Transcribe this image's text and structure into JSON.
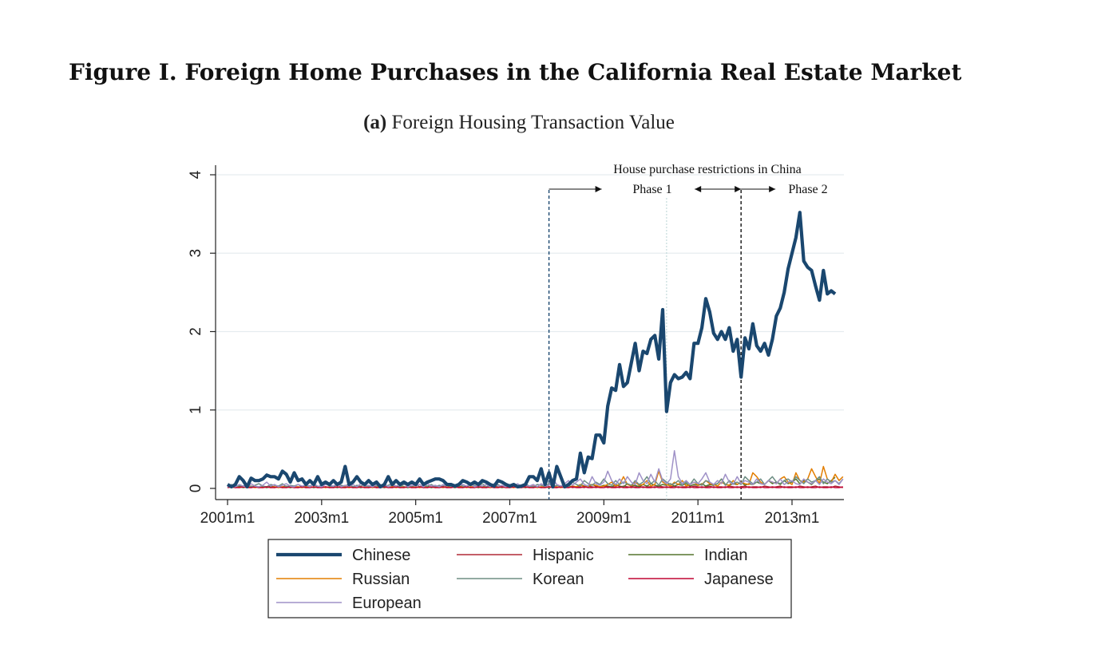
{
  "figure_title": "Figure I. Foreign Home Purchases in the California Real Estate Market",
  "subtitle_label": "(a)",
  "subtitle_text": "Foreign Housing Transaction Value",
  "colors": {
    "Chinese": "#1a476f",
    "Hispanic": "#b02a36",
    "Indian": "#55752f",
    "Russian": "#e37e00",
    "Korean": "#6e8e84",
    "Japanese": "#c10534",
    "European": "#9f91c7"
  },
  "chart_data": {
    "type": "line",
    "xlabel": "",
    "ylabel": "",
    "ylim": [
      0,
      4
    ],
    "yticks": [
      0,
      1,
      2,
      3,
      4
    ],
    "xlim_months": [
      "2001m1",
      "2013m12"
    ],
    "xticks": [
      "2001m1",
      "2003m1",
      "2005m1",
      "2007m1",
      "2009m1",
      "2011m1",
      "2013m1"
    ],
    "grid": "horizontal",
    "legend_placement": "bottom",
    "annotations": {
      "header": "House purchase restrictions in China",
      "phase1": "Phase 1",
      "phase2": "Phase 2",
      "phase1_start": "2007m11",
      "phase1_mid": "2010m5",
      "phase2_start": "2011m12"
    },
    "series": [
      {
        "name": "Chinese",
        "x_start": "2001m1",
        "values": [
          0.05,
          0.02,
          0.05,
          0.15,
          0.1,
          0.02,
          0.13,
          0.1,
          0.1,
          0.12,
          0.17,
          0.15,
          0.15,
          0.12,
          0.22,
          0.18,
          0.08,
          0.2,
          0.1,
          0.12,
          0.05,
          0.1,
          0.05,
          0.15,
          0.05,
          0.08,
          0.05,
          0.1,
          0.05,
          0.08,
          0.28,
          0.05,
          0.08,
          0.15,
          0.08,
          0.05,
          0.1,
          0.05,
          0.08,
          0.02,
          0.05,
          0.15,
          0.05,
          0.1,
          0.05,
          0.08,
          0.05,
          0.08,
          0.05,
          0.12,
          0.05,
          0.08,
          0.1,
          0.12,
          0.12,
          0.1,
          0.05,
          0.05,
          0.03,
          0.05,
          0.1,
          0.08,
          0.05,
          0.08,
          0.05,
          0.1,
          0.08,
          0.05,
          0.03,
          0.1,
          0.08,
          0.05,
          0.03,
          0.05,
          0.02,
          0.03,
          0.05,
          0.15,
          0.15,
          0.1,
          0.25,
          0.05,
          0.2,
          0.02,
          0.28,
          0.15,
          0.02,
          0.05,
          0.1,
          0.12,
          0.45,
          0.2,
          0.4,
          0.38,
          0.68,
          0.68,
          0.58,
          1.05,
          1.28,
          1.25,
          1.58,
          1.3,
          1.35,
          1.6,
          1.85,
          1.5,
          1.75,
          1.72,
          1.9,
          1.95,
          1.65,
          2.28,
          0.98,
          1.35,
          1.45,
          1.4,
          1.42,
          1.48,
          1.4,
          1.85,
          1.85,
          2.05,
          2.42,
          2.25,
          1.98,
          1.9,
          2.0,
          1.9,
          2.05,
          1.75,
          1.9,
          1.42,
          1.92,
          1.78,
          2.1,
          1.82,
          1.75,
          1.85,
          1.7,
          1.9,
          2.2,
          2.3,
          2.5,
          2.8,
          3.0,
          3.2,
          3.52,
          2.9,
          2.82,
          2.78,
          2.58,
          2.4,
          2.78,
          2.48,
          2.52,
          2.48
        ]
      },
      {
        "name": "Hispanic",
        "x_start": "2001m1",
        "values": [
          0.02,
          0.01,
          0.02,
          0.03,
          0.01,
          0.02,
          0.03,
          0.01,
          0.02,
          0.02,
          0.01,
          0.03,
          0.02,
          0.01,
          0.02,
          0.03,
          0.01,
          0.02,
          0.02,
          0.01,
          0.03,
          0.02,
          0.01,
          0.02,
          0.03,
          0.01,
          0.02,
          0.02,
          0.01,
          0.03,
          0.02,
          0.01,
          0.02,
          0.03,
          0.01,
          0.02,
          0.02,
          0.01,
          0.03,
          0.02,
          0.01,
          0.02,
          0.03,
          0.01,
          0.02,
          0.02,
          0.01,
          0.03,
          0.02,
          0.01,
          0.02,
          0.03,
          0.01,
          0.02,
          0.02,
          0.01,
          0.03,
          0.02,
          0.01,
          0.02,
          0.03,
          0.01,
          0.02,
          0.02,
          0.01,
          0.03,
          0.02,
          0.01,
          0.02,
          0.03,
          0.01,
          0.02,
          0.02,
          0.01,
          0.03,
          0.02,
          0.01,
          0.02,
          0.03,
          0.01,
          0.02,
          0.02,
          0.01,
          0.03,
          0.02,
          0.01,
          0.02,
          0.03,
          0.01,
          0.02,
          0.02,
          0.01,
          0.03,
          0.02,
          0.01,
          0.02,
          0.03,
          0.01,
          0.02,
          0.02,
          0.01,
          0.03,
          0.02,
          0.01,
          0.02,
          0.03,
          0.01,
          0.02,
          0.02,
          0.01,
          0.03,
          0.02,
          0.01,
          0.02,
          0.03,
          0.01,
          0.02,
          0.02,
          0.01,
          0.03,
          0.02,
          0.01,
          0.02,
          0.03,
          0.01,
          0.02,
          0.02,
          0.01,
          0.03,
          0.02,
          0.01,
          0.02,
          0.03,
          0.01,
          0.02,
          0.02,
          0.01,
          0.03,
          0.02,
          0.01,
          0.02,
          0.03,
          0.01,
          0.02,
          0.02,
          0.01,
          0.03,
          0.02,
          0.01,
          0.02,
          0.03,
          0.01,
          0.02,
          0.02,
          0.01,
          0.03,
          0.02,
          0.01
        ]
      },
      {
        "name": "Indian",
        "x_start": "2001m1",
        "values": [
          0.01,
          0.02,
          0.01,
          0.02,
          0.01,
          0.02,
          0.01,
          0.02,
          0.01,
          0.02,
          0.01,
          0.02,
          0.01,
          0.02,
          0.01,
          0.02,
          0.01,
          0.02,
          0.01,
          0.02,
          0.01,
          0.02,
          0.01,
          0.02,
          0.01,
          0.02,
          0.01,
          0.02,
          0.01,
          0.02,
          0.01,
          0.02,
          0.01,
          0.02,
          0.01,
          0.02,
          0.01,
          0.02,
          0.01,
          0.02,
          0.01,
          0.02,
          0.01,
          0.02,
          0.01,
          0.02,
          0.01,
          0.02,
          0.01,
          0.02,
          0.01,
          0.02,
          0.01,
          0.02,
          0.01,
          0.02,
          0.01,
          0.02,
          0.01,
          0.02,
          0.01,
          0.02,
          0.01,
          0.02,
          0.01,
          0.02,
          0.01,
          0.02,
          0.01,
          0.02,
          0.01,
          0.02,
          0.01,
          0.02,
          0.01,
          0.02,
          0.01,
          0.02,
          0.01,
          0.02,
          0.01,
          0.02,
          0.01,
          0.02,
          0.01,
          0.02,
          0.01,
          0.02,
          0.03,
          0.02,
          0.05,
          0.03,
          0.02,
          0.05,
          0.03,
          0.02,
          0.04,
          0.03,
          0.02,
          0.05,
          0.03,
          0.02,
          0.06,
          0.03,
          0.04,
          0.02,
          0.05,
          0.03,
          0.06,
          0.04,
          0.03,
          0.05,
          0.04,
          0.06,
          0.03,
          0.05,
          0.04,
          0.06,
          0.03,
          0.05,
          0.04,
          0.06,
          0.03,
          0.05,
          0.04,
          0.06,
          0.12,
          0.05,
          0.04,
          0.06,
          0.05,
          0.08,
          0.04,
          0.06,
          0.05,
          0.08,
          0.06,
          0.05,
          0.1,
          0.06,
          0.08,
          0.05,
          0.1,
          0.06,
          0.08,
          0.12,
          0.06,
          0.1,
          0.08,
          0.05,
          0.1,
          0.12,
          0.08,
          0.06,
          0.1,
          0.14
        ]
      },
      {
        "name": "Russian",
        "x_start": "2001m1",
        "values": [
          0.02,
          0.01,
          0.02,
          0.01,
          0.02,
          0.01,
          0.02,
          0.01,
          0.02,
          0.01,
          0.02,
          0.01,
          0.02,
          0.01,
          0.02,
          0.01,
          0.02,
          0.01,
          0.02,
          0.01,
          0.02,
          0.01,
          0.02,
          0.01,
          0.02,
          0.01,
          0.02,
          0.01,
          0.02,
          0.01,
          0.02,
          0.01,
          0.02,
          0.01,
          0.02,
          0.01,
          0.02,
          0.01,
          0.02,
          0.01,
          0.02,
          0.01,
          0.02,
          0.01,
          0.02,
          0.01,
          0.02,
          0.01,
          0.02,
          0.01,
          0.02,
          0.01,
          0.02,
          0.01,
          0.02,
          0.01,
          0.02,
          0.01,
          0.02,
          0.01,
          0.02,
          0.01,
          0.02,
          0.01,
          0.02,
          0.01,
          0.02,
          0.01,
          0.02,
          0.01,
          0.02,
          0.01,
          0.02,
          0.01,
          0.02,
          0.01,
          0.02,
          0.01,
          0.02,
          0.01,
          0.02,
          0.01,
          0.02,
          0.01,
          0.02,
          0.01,
          0.02,
          0.01,
          0.03,
          0.02,
          0.05,
          0.02,
          0.03,
          0.05,
          0.04,
          0.02,
          0.03,
          0.05,
          0.08,
          0.03,
          0.05,
          0.15,
          0.05,
          0.03,
          0.08,
          0.04,
          0.05,
          0.1,
          0.03,
          0.05,
          0.22,
          0.08,
          0.05,
          0.03,
          0.08,
          0.05,
          0.1,
          0.03,
          0.05,
          0.08,
          0.04,
          0.05,
          0.1,
          0.06,
          0.05,
          0.03,
          0.08,
          0.05,
          0.04,
          0.1,
          0.05,
          0.08,
          0.06,
          0.05,
          0.2,
          0.15,
          0.08,
          0.05,
          0.1,
          0.08,
          0.06,
          0.12,
          0.15,
          0.08,
          0.05,
          0.2,
          0.1,
          0.08,
          0.12,
          0.25,
          0.15,
          0.06,
          0.28,
          0.12,
          0.08,
          0.18,
          0.1,
          0.15
        ]
      },
      {
        "name": "Korean",
        "x_start": "2001m1",
        "values": [
          0.03,
          0.05,
          0.02,
          0.04,
          0.03,
          0.05,
          0.02,
          0.04,
          0.06,
          0.03,
          0.02,
          0.05,
          0.04,
          0.03,
          0.06,
          0.02,
          0.04,
          0.03,
          0.05,
          0.02,
          0.04,
          0.03,
          0.05,
          0.02,
          0.04,
          0.06,
          0.03,
          0.02,
          0.05,
          0.04,
          0.03,
          0.06,
          0.02,
          0.04,
          0.03,
          0.05,
          0.02,
          0.04,
          0.03,
          0.05,
          0.02,
          0.04,
          0.06,
          0.03,
          0.02,
          0.05,
          0.04,
          0.03,
          0.06,
          0.02,
          0.04,
          0.03,
          0.05,
          0.02,
          0.04,
          0.03,
          0.05,
          0.02,
          0.04,
          0.06,
          0.03,
          0.02,
          0.05,
          0.04,
          0.03,
          0.06,
          0.02,
          0.04,
          0.03,
          0.05,
          0.02,
          0.04,
          0.03,
          0.05,
          0.02,
          0.04,
          0.06,
          0.03,
          0.02,
          0.05,
          0.04,
          0.03,
          0.06,
          0.02,
          0.04,
          0.03,
          0.05,
          0.02,
          0.08,
          0.05,
          0.03,
          0.1,
          0.06,
          0.04,
          0.08,
          0.05,
          0.12,
          0.06,
          0.04,
          0.1,
          0.05,
          0.08,
          0.06,
          0.04,
          0.1,
          0.05,
          0.08,
          0.15,
          0.06,
          0.1,
          0.04,
          0.12,
          0.08,
          0.05,
          0.06,
          0.1,
          0.04,
          0.08,
          0.05,
          0.12,
          0.06,
          0.04,
          0.1,
          0.08,
          0.05,
          0.06,
          0.12,
          0.04,
          0.1,
          0.06,
          0.08,
          0.05,
          0.15,
          0.1,
          0.06,
          0.08,
          0.12,
          0.05,
          0.1,
          0.15,
          0.08,
          0.06,
          0.1,
          0.12,
          0.08,
          0.15,
          0.1,
          0.06,
          0.12,
          0.08,
          0.1,
          0.15,
          0.06,
          0.12,
          0.08,
          0.1,
          0.06,
          0.12
        ]
      },
      {
        "name": "Japanese",
        "x_start": "2001m1",
        "values": [
          0.01,
          0.02,
          0.01,
          0.01,
          0.02,
          0.01,
          0.01,
          0.02,
          0.01,
          0.01,
          0.02,
          0.01,
          0.01,
          0.02,
          0.01,
          0.01,
          0.02,
          0.01,
          0.01,
          0.02,
          0.01,
          0.01,
          0.02,
          0.01,
          0.01,
          0.02,
          0.01,
          0.01,
          0.02,
          0.01,
          0.01,
          0.02,
          0.01,
          0.01,
          0.02,
          0.01,
          0.01,
          0.02,
          0.01,
          0.01,
          0.02,
          0.01,
          0.01,
          0.02,
          0.01,
          0.01,
          0.02,
          0.01,
          0.01,
          0.02,
          0.01,
          0.01,
          0.02,
          0.01,
          0.01,
          0.02,
          0.01,
          0.01,
          0.02,
          0.01,
          0.01,
          0.02,
          0.01,
          0.01,
          0.02,
          0.01,
          0.01,
          0.02,
          0.01,
          0.01,
          0.02,
          0.01,
          0.01,
          0.02,
          0.01,
          0.01,
          0.02,
          0.01,
          0.01,
          0.02,
          0.01,
          0.01,
          0.02,
          0.01,
          0.01,
          0.02,
          0.01,
          0.01,
          0.02,
          0.01,
          0.01,
          0.02,
          0.01,
          0.01,
          0.02,
          0.01,
          0.01,
          0.02,
          0.01,
          0.01,
          0.02,
          0.01,
          0.01,
          0.02,
          0.01,
          0.01,
          0.02,
          0.01,
          0.01,
          0.02,
          0.01,
          0.01,
          0.02,
          0.01,
          0.01,
          0.02,
          0.01,
          0.01,
          0.02,
          0.01,
          0.01,
          0.02,
          0.01,
          0.01,
          0.02,
          0.01,
          0.01,
          0.02,
          0.01,
          0.01,
          0.02,
          0.01,
          0.01,
          0.02,
          0.01,
          0.01,
          0.02,
          0.01,
          0.01,
          0.02,
          0.01,
          0.01,
          0.02,
          0.01,
          0.01,
          0.02,
          0.01,
          0.01,
          0.02,
          0.01,
          0.01,
          0.02,
          0.01,
          0.01,
          0.02,
          0.01,
          0.01,
          0.02
        ]
      },
      {
        "name": "European",
        "x_start": "2001m1",
        "values": [
          0.02,
          0.04,
          0.02,
          0.05,
          0.03,
          0.02,
          0.06,
          0.03,
          0.02,
          0.04,
          0.08,
          0.03,
          0.05,
          0.02,
          0.04,
          0.06,
          0.03,
          0.02,
          0.05,
          0.03,
          0.04,
          0.02,
          0.06,
          0.03,
          0.02,
          0.05,
          0.04,
          0.03,
          0.06,
          0.02,
          0.04,
          0.03,
          0.05,
          0.02,
          0.06,
          0.03,
          0.04,
          0.02,
          0.05,
          0.03,
          0.06,
          0.02,
          0.04,
          0.03,
          0.05,
          0.06,
          0.02,
          0.04,
          0.03,
          0.05,
          0.02,
          0.06,
          0.03,
          0.04,
          0.02,
          0.05,
          0.03,
          0.06,
          0.02,
          0.04,
          0.05,
          0.03,
          0.06,
          0.02,
          0.04,
          0.03,
          0.05,
          0.02,
          0.06,
          0.03,
          0.04,
          0.02,
          0.05,
          0.03,
          0.06,
          0.02,
          0.04,
          0.03,
          0.05,
          0.02,
          0.06,
          0.03,
          0.04,
          0.12,
          0.05,
          0.03,
          0.06,
          0.1,
          0.04,
          0.08,
          0.12,
          0.05,
          0.03,
          0.15,
          0.06,
          0.04,
          0.08,
          0.22,
          0.1,
          0.05,
          0.12,
          0.06,
          0.15,
          0.08,
          0.05,
          0.2,
          0.1,
          0.06,
          0.18,
          0.08,
          0.25,
          0.1,
          0.06,
          0.12,
          0.48,
          0.15,
          0.06,
          0.1,
          0.05,
          0.08,
          0.06,
          0.12,
          0.2,
          0.08,
          0.05,
          0.1,
          0.06,
          0.18,
          0.08,
          0.05,
          0.15,
          0.06,
          0.1,
          0.08,
          0.05,
          0.12,
          0.06,
          0.05,
          0.1,
          0.08,
          0.06,
          0.12,
          0.05,
          0.08,
          0.1,
          0.06,
          0.05,
          0.12,
          0.08,
          0.06,
          0.1,
          0.05,
          0.12,
          0.08,
          0.06,
          0.1,
          0.05,
          0.12
        ]
      }
    ]
  },
  "legend": {
    "entries": [
      "Chinese",
      "Hispanic",
      "Indian",
      "Russian",
      "Korean",
      "Japanese",
      "European"
    ]
  }
}
